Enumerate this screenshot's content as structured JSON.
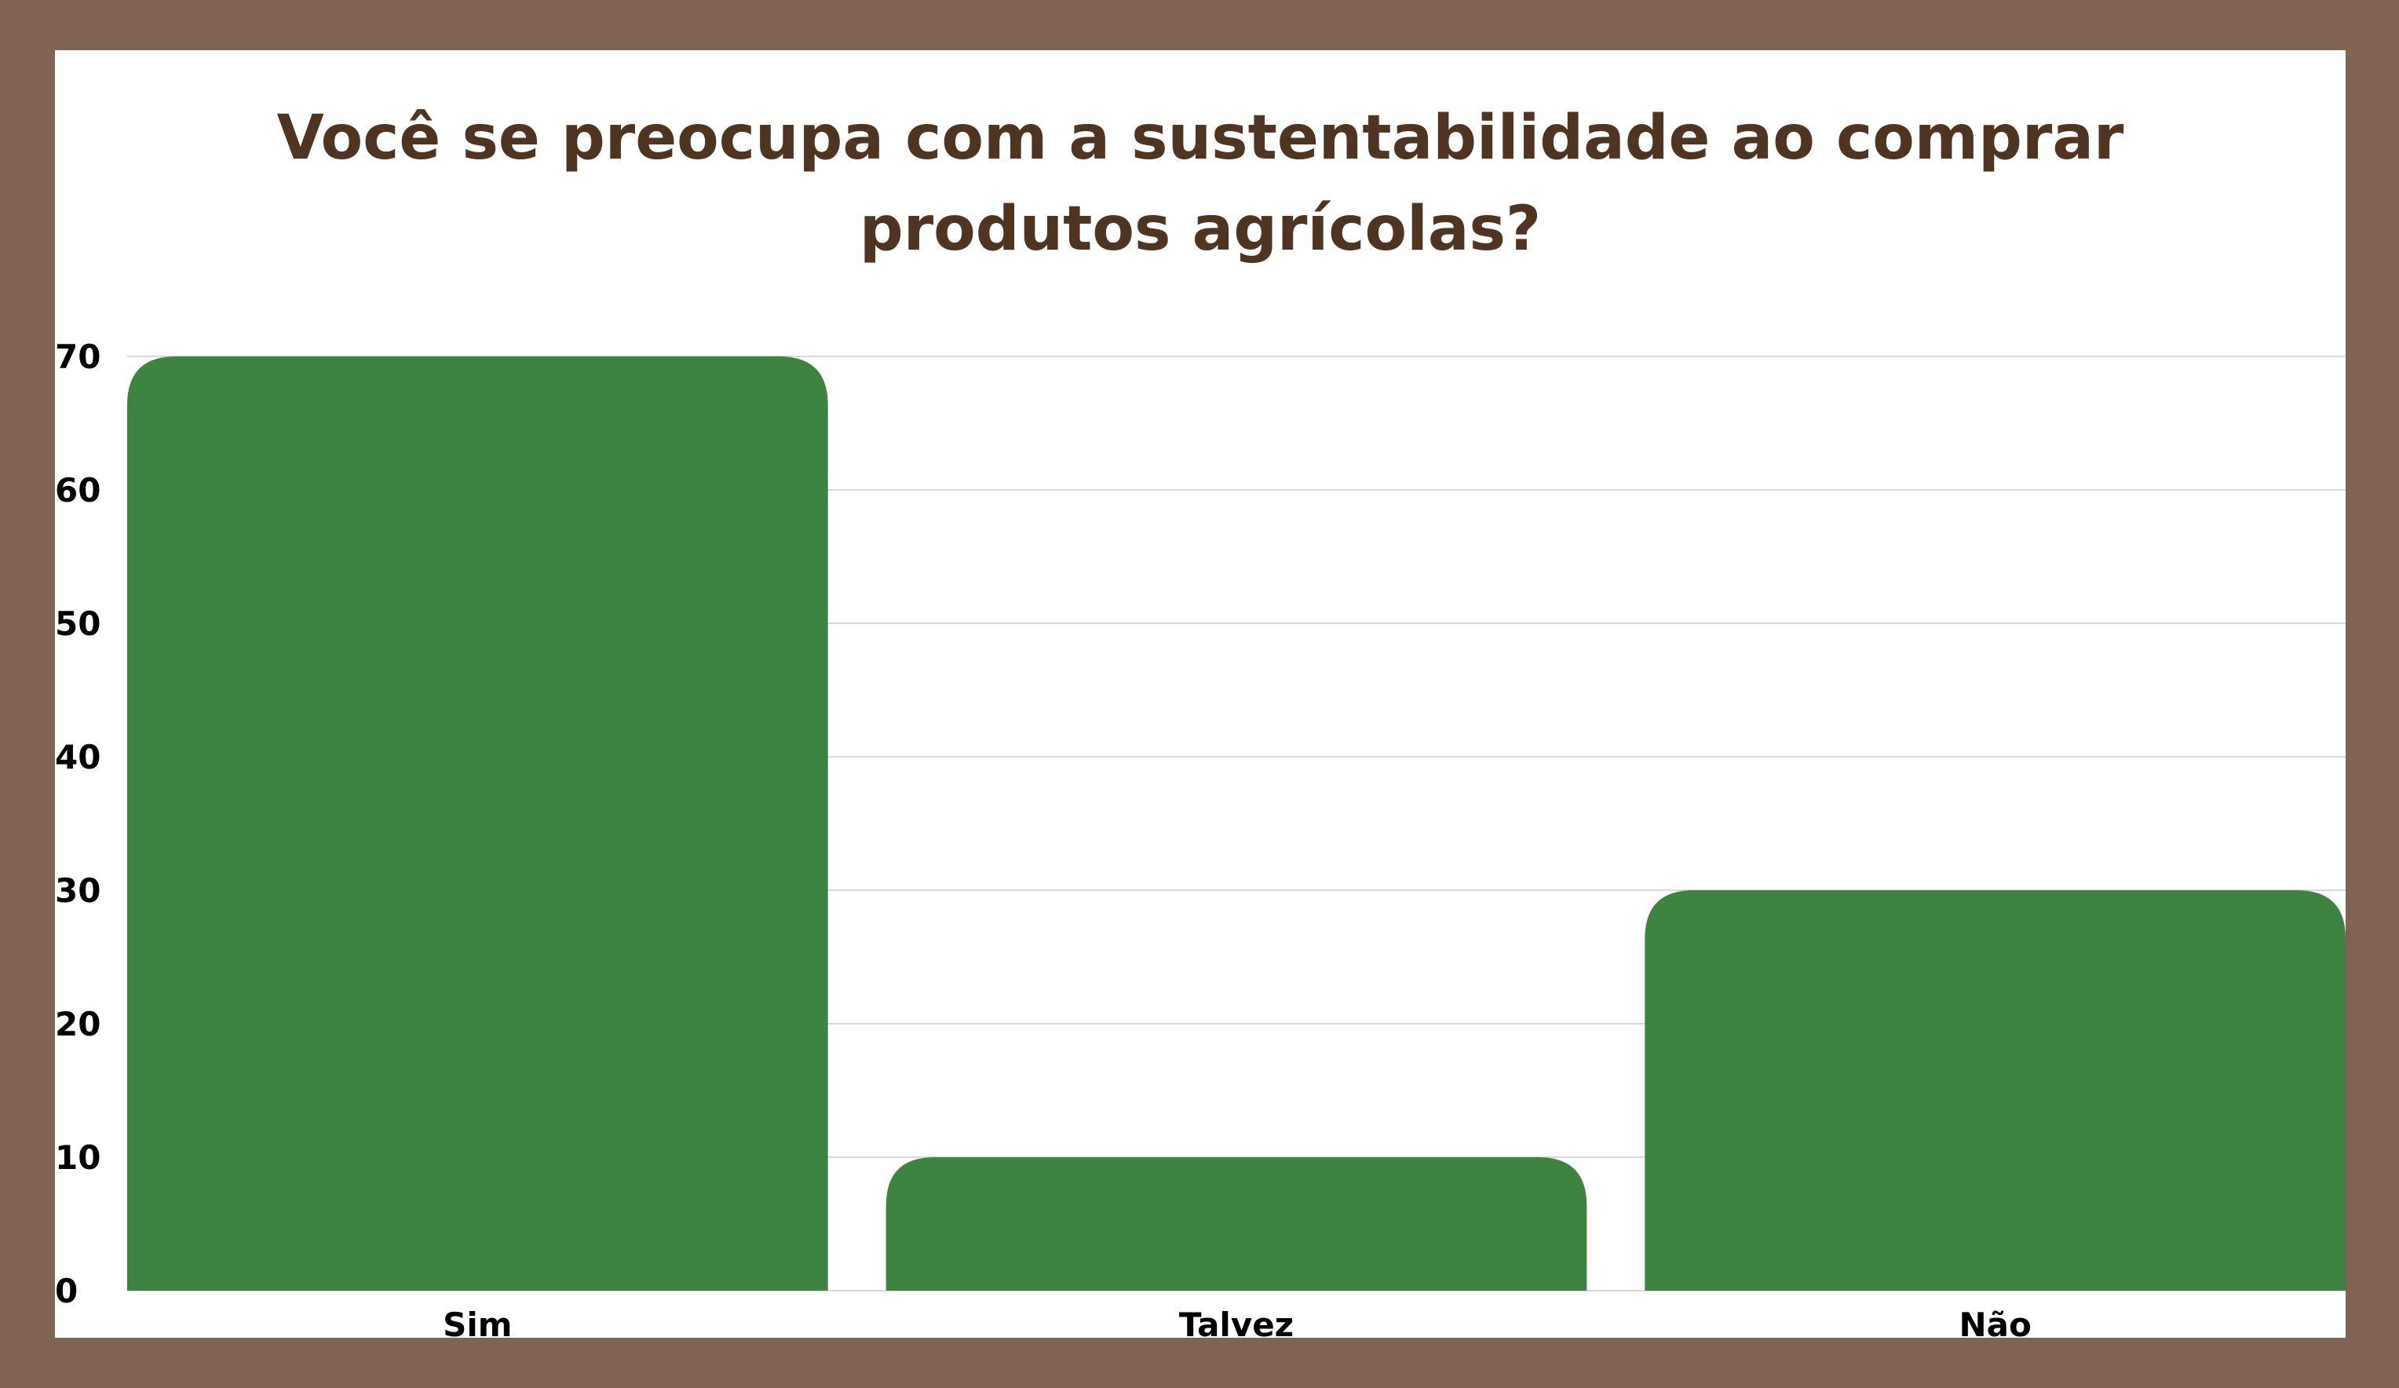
{
  "colors": {
    "frame": "#7f6454",
    "background": "#ffffff",
    "title": "#4f3422",
    "bar": "#3e8440",
    "grid": "#d9d9d9",
    "axis_text": "#000000"
  },
  "chart_data": {
    "type": "bar",
    "title": "Você se preocupa com a sustentabilidade ao comprar\nprodutos agrícolas?",
    "xlabel": "",
    "ylabel": "",
    "categories": [
      "Sim",
      "Talvez",
      "Não"
    ],
    "values": [
      70,
      10,
      30
    ],
    "ylim": [
      0,
      70
    ],
    "yticks": [
      0,
      10,
      20,
      30,
      40,
      50,
      60,
      70
    ],
    "grid": true,
    "legend": "none"
  }
}
